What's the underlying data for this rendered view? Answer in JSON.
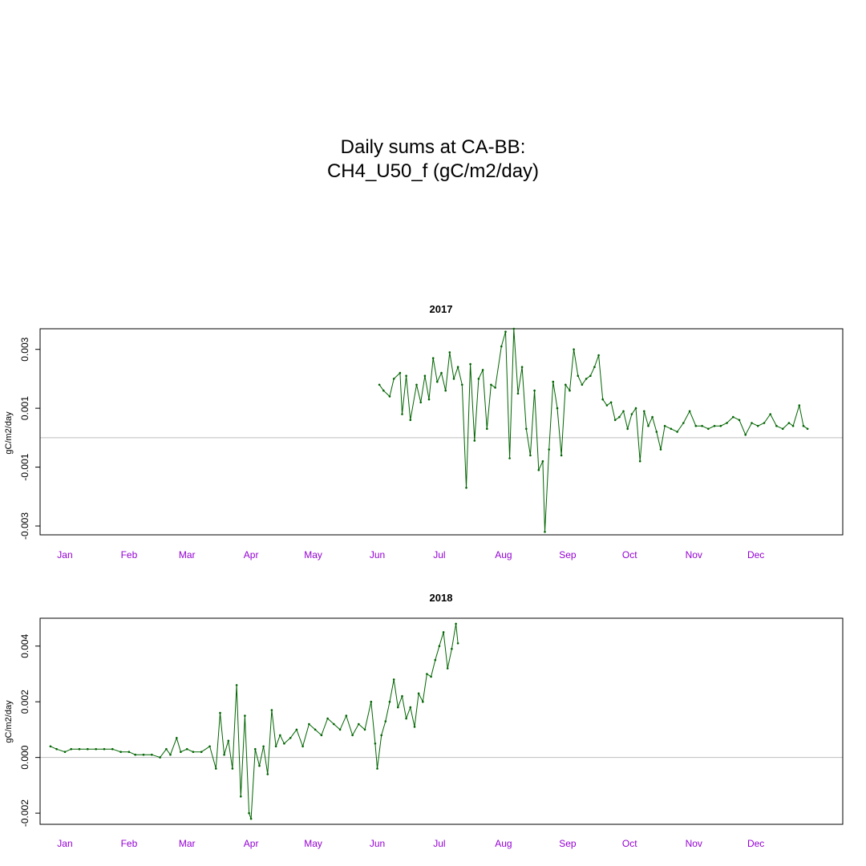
{
  "figure": {
    "title_line1": "Daily sums at CA-BB:",
    "title_line2": "CH4_U50_f (gC/m2/day)"
  },
  "colors": {
    "series": "#006400",
    "month_labels": "#9400D3",
    "zero_line": "#BEBEBE",
    "axes": "#000000"
  },
  "chart_data": [
    {
      "type": "line",
      "title": "2017",
      "ylabel": "gC/m2/day",
      "ylim": [
        -0.0033,
        0.0037
      ],
      "yticks": [
        0.003,
        0.001,
        -0.001,
        -0.003
      ],
      "ytick_labels": [
        "0.003",
        "0.001",
        "-0.001",
        "-0.003"
      ],
      "x_axis": "date",
      "xlim": [
        "2016-12-20",
        "2018-01-12"
      ],
      "xticks": [
        "2017-01-01",
        "2017-02-01",
        "2017-03-01",
        "2017-04-01",
        "2017-05-01",
        "2017-06-01",
        "2017-07-01",
        "2017-08-01",
        "2017-09-01",
        "2017-10-01",
        "2017-11-01",
        "2017-12-01"
      ],
      "xtick_labels": [
        "Jan",
        "Feb",
        "Mar",
        "Apr",
        "May",
        "Jun",
        "Jul",
        "Aug",
        "Sep",
        "Oct",
        "Nov",
        "Dec"
      ],
      "reference_line": 0,
      "series": [
        {
          "x": [
            "2017-06-02",
            "2017-06-04",
            "2017-06-07",
            "2017-06-09",
            "2017-06-12",
            "2017-06-13",
            "2017-06-15",
            "2017-06-17",
            "2017-06-20",
            "2017-06-22",
            "2017-06-24",
            "2017-06-26",
            "2017-06-28",
            "2017-06-30",
            "2017-07-02",
            "2017-07-04",
            "2017-07-06",
            "2017-07-08",
            "2017-07-10",
            "2017-07-12",
            "2017-07-14",
            "2017-07-16",
            "2017-07-18",
            "2017-07-20",
            "2017-07-22",
            "2017-07-24",
            "2017-07-26",
            "2017-07-28",
            "2017-07-31",
            "2017-08-02",
            "2017-08-04",
            "2017-08-06",
            "2017-08-08",
            "2017-08-10",
            "2017-08-12",
            "2017-08-14",
            "2017-08-16",
            "2017-08-18",
            "2017-08-20",
            "2017-08-21",
            "2017-08-23",
            "2017-08-25",
            "2017-08-27",
            "2017-08-29",
            "2017-08-31",
            "2017-09-02",
            "2017-09-04",
            "2017-09-06",
            "2017-09-08",
            "2017-09-10",
            "2017-09-12",
            "2017-09-14",
            "2017-09-16",
            "2017-09-18",
            "2017-09-20",
            "2017-09-22",
            "2017-09-24",
            "2017-09-26",
            "2017-09-28",
            "2017-09-30",
            "2017-10-02",
            "2017-10-04",
            "2017-10-06",
            "2017-10-08",
            "2017-10-10",
            "2017-10-12",
            "2017-10-14",
            "2017-10-16",
            "2017-10-18",
            "2017-10-21",
            "2017-10-24",
            "2017-10-27",
            "2017-10-30",
            "2017-11-02",
            "2017-11-05",
            "2017-11-08",
            "2017-11-11",
            "2017-11-14",
            "2017-11-17",
            "2017-11-20",
            "2017-11-23",
            "2017-11-26",
            "2017-11-29",
            "2017-12-02",
            "2017-12-05",
            "2017-12-08",
            "2017-12-11",
            "2017-12-14",
            "2017-12-17",
            "2017-12-19",
            "2017-12-22",
            "2017-12-24",
            "2017-12-26"
          ],
          "values": [
            0.0018,
            0.0016,
            0.0014,
            0.002,
            0.0022,
            0.0008,
            0.0021,
            0.0006,
            0.0018,
            0.0012,
            0.0021,
            0.0013,
            0.0027,
            0.0019,
            0.0022,
            0.0016,
            0.0029,
            0.002,
            0.0024,
            0.0018,
            -0.0017,
            0.0025,
            -0.0001,
            0.002,
            0.0023,
            0.0003,
            0.0018,
            0.0017,
            0.0031,
            0.0036,
            -0.0007,
            0.0037,
            0.0015,
            0.0024,
            0.0003,
            -0.0006,
            0.0016,
            -0.0011,
            -0.0008,
            -0.0032,
            -0.0004,
            0.0019,
            0.001,
            -0.0006,
            0.0018,
            0.0016,
            0.003,
            0.0021,
            0.0018,
            0.002,
            0.0021,
            0.0024,
            0.0028,
            0.0013,
            0.0011,
            0.0012,
            0.0006,
            0.0007,
            0.0009,
            0.0003,
            0.0008,
            0.001,
            -0.0008,
            0.0009,
            0.0004,
            0.0007,
            0.0002,
            -0.0004,
            0.0004,
            0.0003,
            0.0002,
            0.0005,
            0.0009,
            0.0004,
            0.0004,
            0.0003,
            0.0004,
            0.0004,
            0.0005,
            0.0007,
            0.0006,
            0.0001,
            0.0005,
            0.0004,
            0.0005,
            0.0008,
            0.0004,
            0.0003,
            0.0005,
            0.0004,
            0.0011,
            0.0004,
            0.0003
          ]
        }
      ]
    },
    {
      "type": "line",
      "title": "2018",
      "ylabel": "gC/m2/day",
      "ylim": [
        -0.0024,
        0.005
      ],
      "yticks": [
        0.004,
        0.002,
        0.0,
        -0.002
      ],
      "ytick_labels": [
        "0.004",
        "0.002",
        "0.000",
        "-0.002"
      ],
      "x_axis": "date",
      "xlim": [
        "2017-12-20",
        "2019-01-12"
      ],
      "xticks": [
        "2018-01-01",
        "2018-02-01",
        "2018-03-01",
        "2018-04-01",
        "2018-05-01",
        "2018-06-01",
        "2018-07-01",
        "2018-08-01",
        "2018-09-01",
        "2018-10-01",
        "2018-11-01",
        "2018-12-01"
      ],
      "xtick_labels": [
        "Jan",
        "Feb",
        "Mar",
        "Apr",
        "May",
        "Jun",
        "Jul",
        "Aug",
        "Sep",
        "Oct",
        "Nov",
        "Dec"
      ],
      "reference_line": 0,
      "series": [
        {
          "x": [
            "2017-12-25",
            "2017-12-28",
            "2018-01-01",
            "2018-01-04",
            "2018-01-08",
            "2018-01-12",
            "2018-01-16",
            "2018-01-20",
            "2018-01-24",
            "2018-01-28",
            "2018-02-01",
            "2018-02-04",
            "2018-02-08",
            "2018-02-12",
            "2018-02-16",
            "2018-02-19",
            "2018-02-21",
            "2018-02-24",
            "2018-02-26",
            "2018-03-01",
            "2018-03-04",
            "2018-03-08",
            "2018-03-12",
            "2018-03-15",
            "2018-03-17",
            "2018-03-19",
            "2018-03-21",
            "2018-03-23",
            "2018-03-25",
            "2018-03-27",
            "2018-03-29",
            "2018-03-31",
            "2018-04-01",
            "2018-04-03",
            "2018-04-05",
            "2018-04-07",
            "2018-04-09",
            "2018-04-11",
            "2018-04-13",
            "2018-04-15",
            "2018-04-17",
            "2018-04-20",
            "2018-04-23",
            "2018-04-26",
            "2018-04-29",
            "2018-05-02",
            "2018-05-05",
            "2018-05-08",
            "2018-05-11",
            "2018-05-14",
            "2018-05-17",
            "2018-05-20",
            "2018-05-23",
            "2018-05-26",
            "2018-05-29",
            "2018-05-31",
            "2018-06-01",
            "2018-06-03",
            "2018-06-05",
            "2018-06-07",
            "2018-06-09",
            "2018-06-11",
            "2018-06-13",
            "2018-06-15",
            "2018-06-17",
            "2018-06-19",
            "2018-06-21",
            "2018-06-23",
            "2018-06-25",
            "2018-06-27",
            "2018-06-29",
            "2018-07-01",
            "2018-07-03",
            "2018-07-05",
            "2018-07-07",
            "2018-07-09",
            "2018-07-10"
          ],
          "values": [
            0.0004,
            0.0003,
            0.0002,
            0.0003,
            0.0003,
            0.0003,
            0.0003,
            0.0003,
            0.0003,
            0.0002,
            0.0002,
            0.0001,
            0.0001,
            0.0001,
            0.0,
            0.0003,
            0.0001,
            0.0007,
            0.0002,
            0.0003,
            0.0002,
            0.0002,
            0.0004,
            -0.0004,
            0.0016,
            0.0001,
            0.0006,
            -0.0004,
            0.0026,
            -0.0014,
            0.0015,
            -0.002,
            -0.0022,
            0.0003,
            -0.0003,
            0.0004,
            -0.0006,
            0.0017,
            0.0004,
            0.0008,
            0.0005,
            0.0007,
            0.001,
            0.0004,
            0.0012,
            0.001,
            0.0008,
            0.0014,
            0.0012,
            0.001,
            0.0015,
            0.0008,
            0.0012,
            0.001,
            0.002,
            0.0005,
            -0.0004,
            0.0008,
            0.0013,
            0.002,
            0.0028,
            0.0018,
            0.0022,
            0.0014,
            0.0018,
            0.0011,
            0.0023,
            0.002,
            0.003,
            0.0029,
            0.0035,
            0.004,
            0.0045,
            0.0032,
            0.0039,
            0.0048,
            0.0041
          ]
        }
      ]
    }
  ]
}
